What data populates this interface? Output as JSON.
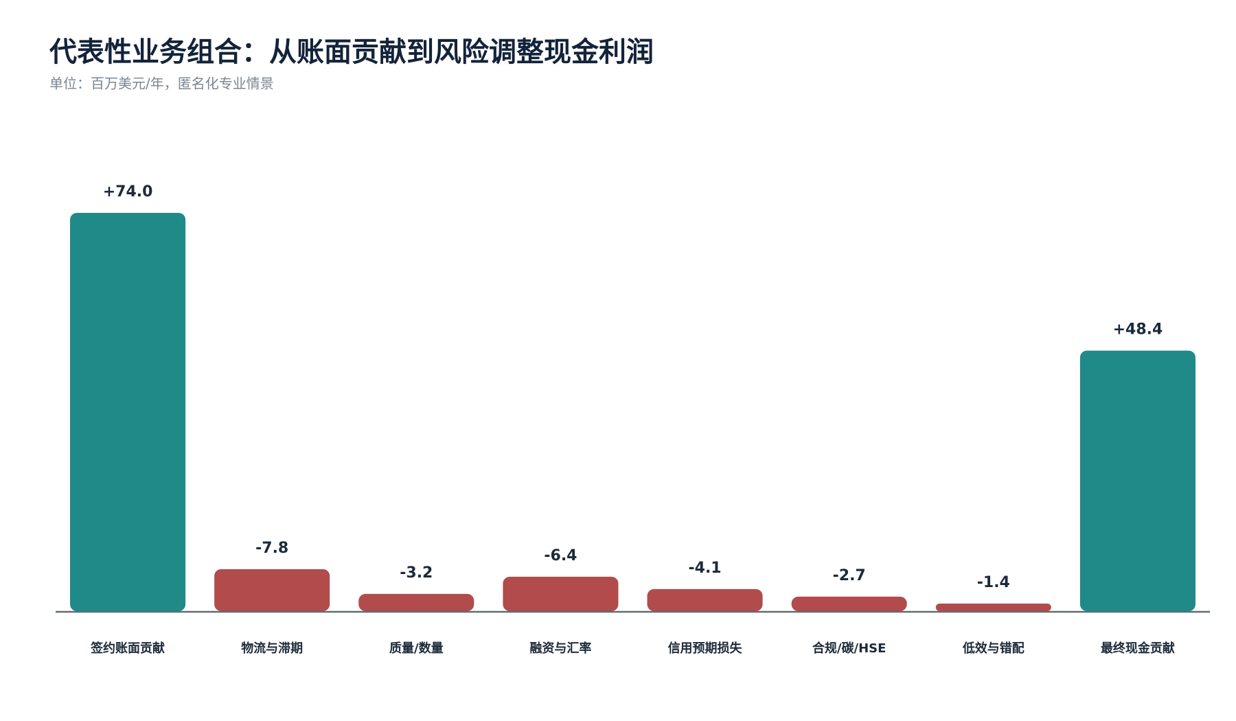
{
  "chart_data": {
    "type": "bar",
    "title": "代表性业务组合：从账面贡献到风险调整现金利润",
    "subtitle": "单位：百万美元/年，匿名化专业情景",
    "categories": [
      "签约账面贡献",
      "物流与滞期",
      "质量/数量",
      "融资与汇率",
      "信用预期损失",
      "合规/碳/HSE",
      "低效与错配",
      "最终现金贡献"
    ],
    "values": [
      74.0,
      -7.8,
      -3.2,
      -6.4,
      -4.1,
      -2.7,
      -1.4,
      48.4
    ],
    "value_labels": [
      "+74.0",
      "-7.8",
      "-3.2",
      "-6.4",
      "-4.1",
      "-2.7",
      "-1.4",
      "+48.4"
    ],
    "positive_color": "#1f8a87",
    "negative_color": "#b24c4c"
  }
}
